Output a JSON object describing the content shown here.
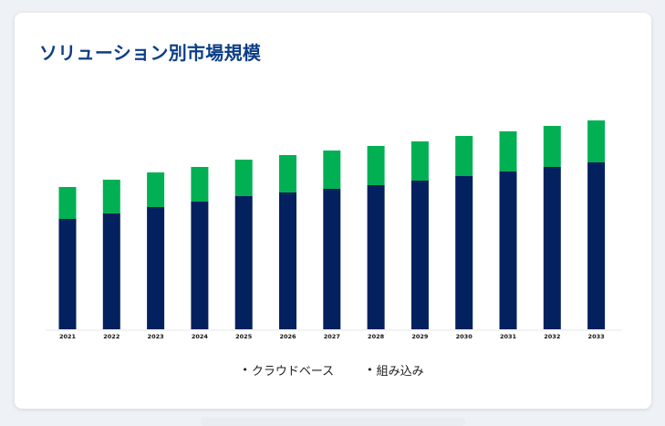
{
  "page_title": "ソリューション別市場規模",
  "colors": {
    "series_1": "#03205f",
    "series_2": "#02b054",
    "title": "#0d3f86",
    "background": "#ffffff"
  },
  "chart_data": {
    "type": "bar",
    "stacked": true,
    "categories": [
      "2021",
      "2022",
      "2023",
      "2024",
      "2025",
      "2026",
      "2027",
      "2028",
      "2029",
      "2030",
      "2031",
      "2032",
      "2033"
    ],
    "series": [
      {
        "name": "クラウドベース",
        "values": [
          121,
          127,
          134,
          140,
          146,
          150,
          154,
          158,
          163,
          168,
          173,
          178,
          183
        ]
      },
      {
        "name": "組み込み",
        "values": [
          35,
          37,
          38,
          38,
          40,
          41,
          42,
          43,
          43,
          44,
          44,
          45,
          46
        ]
      }
    ],
    "legend_position": "bottom",
    "grid": false,
    "y_axis_visible": false
  }
}
